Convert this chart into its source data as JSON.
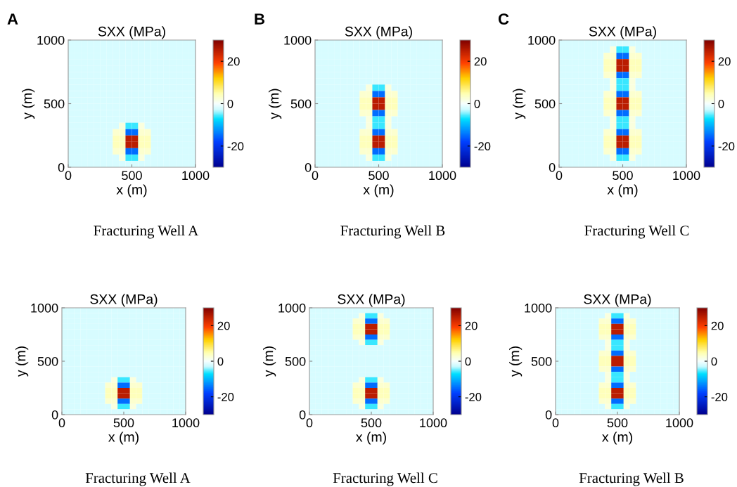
{
  "chart_data": [
    {
      "type": "heatmap",
      "title": "SXX (MPa)",
      "xlabel": "x (m)",
      "ylabel": "y (m)",
      "annotations": [
        "A",
        "Fracturing Well A"
      ],
      "xlim": [
        0,
        1000
      ],
      "ylim": [
        0,
        1000
      ],
      "xticks": [
        0,
        500,
        1000
      ],
      "yticks": [
        0,
        500,
        1000
      ],
      "clim": [
        -30,
        30
      ],
      "cticks": [
        -20,
        0,
        20
      ],
      "cells": [
        [
          -2,
          -2,
          -2,
          -2,
          -2,
          -2,
          -2,
          -2,
          -2,
          -2,
          -2,
          -2,
          -2,
          -2,
          -2,
          -2,
          -2,
          -2,
          -2,
          -2
        ],
        [
          -2,
          -2,
          -2,
          -2,
          -2,
          -2,
          -2,
          -2,
          -2,
          -2,
          -2,
          -2,
          -2,
          -2,
          -2,
          -2,
          -2,
          -2,
          -2,
          -2
        ],
        [
          -2,
          -2,
          -2,
          -2,
          -2,
          -2,
          -2,
          -2,
          -2,
          -2,
          -2,
          -2,
          -2,
          -2,
          -2,
          -2,
          -2,
          -2,
          -2,
          -2
        ],
        [
          -2,
          -2,
          -2,
          -2,
          -2,
          -2,
          -2,
          -2,
          -2,
          -2,
          -2,
          -2,
          -2,
          -2,
          -2,
          -2,
          -2,
          -2,
          -2,
          -2
        ],
        [
          -2,
          -2,
          -2,
          -2,
          -2,
          -2,
          -2,
          -2,
          -2,
          -2,
          -2,
          -2,
          -2,
          -2,
          -2,
          -2,
          -2,
          -2,
          -2,
          -2
        ],
        [
          -2,
          -2,
          -2,
          -2,
          -2,
          -2,
          -2,
          -2,
          -2,
          -2,
          -2,
          -2,
          -2,
          -2,
          -2,
          -2,
          -2,
          -2,
          -2,
          -2
        ],
        [
          -2,
          -2,
          -2,
          -2,
          -2,
          -2,
          -2,
          -2,
          -2,
          -2,
          -2,
          -2,
          -2,
          -2,
          -2,
          -2,
          -2,
          -2,
          -2,
          -2
        ],
        [
          -2,
          -2,
          -2,
          -2,
          -2,
          -2,
          -2,
          -2,
          -2,
          -2,
          -2,
          -2,
          -2,
          -2,
          -2,
          -2,
          -2,
          -2,
          -2,
          -2
        ],
        [
          -2,
          -2,
          -2,
          -2,
          -2,
          -2,
          -2,
          -2,
          -2,
          -2,
          -2,
          -2,
          -2,
          -2,
          -2,
          -2,
          -2,
          -2,
          -2,
          -2
        ],
        [
          -2,
          -2,
          -2,
          -2,
          -2,
          -2,
          -2,
          -2,
          -2,
          -2,
          -2,
          -2,
          -2,
          -2,
          -2,
          -2,
          -2,
          -2,
          -2,
          -2
        ],
        [
          -2,
          -2,
          -2,
          -2,
          -2,
          -2,
          -2,
          -2,
          -2,
          -2,
          -2,
          -2,
          -2,
          -2,
          -2,
          -2,
          -2,
          -2,
          -2,
          -2
        ],
        [
          -2,
          -2,
          -2,
          -2,
          -2,
          -2,
          -2,
          -2,
          -2,
          -2,
          -2,
          -2,
          -2,
          -2,
          -2,
          -2,
          -2,
          -2,
          -2,
          -2
        ],
        [
          -2,
          -2,
          -2,
          -2,
          -2,
          -2,
          -2,
          -2,
          -2,
          -2,
          -2,
          -2,
          -2,
          -2,
          -2,
          -2,
          -2,
          -2,
          -2,
          -2
        ],
        [
          -2,
          -2,
          -2,
          -2,
          -2,
          -2,
          -2,
          -2,
          2,
          -6,
          -6,
          2,
          -2,
          -2,
          -2,
          -2,
          -2,
          -2,
          -2,
          -2
        ],
        [
          -2,
          -2,
          -2,
          -2,
          -2,
          -2,
          -2,
          3,
          3,
          -15,
          -15,
          3,
          3,
          -2,
          -2,
          -2,
          -2,
          -2,
          -2,
          -2
        ],
        [
          -2,
          -2,
          -2,
          -2,
          -2,
          -2,
          -2,
          4,
          4,
          25,
          25,
          4,
          4,
          -2,
          -2,
          -2,
          -2,
          -2,
          -2,
          -2
        ],
        [
          -2,
          -2,
          -2,
          -2,
          -2,
          -2,
          -2,
          4,
          4,
          25,
          25,
          4,
          4,
          -2,
          -2,
          -2,
          -2,
          -2,
          -2,
          -2
        ],
        [
          -2,
          -2,
          -2,
          -2,
          -2,
          -2,
          -2,
          3,
          3,
          -15,
          -15,
          3,
          3,
          -2,
          -2,
          -2,
          -2,
          -2,
          -2,
          -2
        ],
        [
          -2,
          -2,
          -2,
          -2,
          -2,
          -2,
          -2,
          -2,
          2,
          -6,
          -6,
          2,
          -2,
          -2,
          -2,
          -2,
          -2,
          -2,
          -2,
          -2
        ],
        [
          -2,
          -2,
          -2,
          -2,
          -2,
          -2,
          -2,
          -2,
          -2,
          -2,
          -2,
          -2,
          -2,
          -2,
          -2,
          -2,
          -2,
          -2,
          -2,
          -2
        ]
      ]
    },
    {
      "type": "heatmap",
      "title": "SXX (MPa)",
      "xlabel": "x (m)",
      "ylabel": "y (m)",
      "annotations": [
        "B",
        "Fracturing Well B"
      ],
      "xlim": [
        0,
        1000
      ],
      "ylim": [
        0,
        1000
      ],
      "xticks": [
        0,
        500,
        1000
      ],
      "yticks": [
        0,
        500,
        1000
      ],
      "clim": [
        -30,
        30
      ],
      "cticks": [
        -20,
        0,
        20
      ],
      "cells": [
        [
          -2,
          -2,
          -2,
          -2,
          -2,
          -2,
          -2,
          -2,
          -2,
          -2,
          -2,
          -2,
          -2,
          -2,
          -2,
          -2,
          -2,
          -2,
          -2,
          -2
        ],
        [
          -2,
          -2,
          -2,
          -2,
          -2,
          -2,
          -2,
          -2,
          -2,
          -2,
          -2,
          -2,
          -2,
          -2,
          -2,
          -2,
          -2,
          -2,
          -2,
          -2
        ],
        [
          -2,
          -2,
          -2,
          -2,
          -2,
          -2,
          -2,
          -2,
          -2,
          -2,
          -2,
          -2,
          -2,
          -2,
          -2,
          -2,
          -2,
          -2,
          -2,
          -2
        ],
        [
          -2,
          -2,
          -2,
          -2,
          -2,
          -2,
          -2,
          -2,
          -2,
          -2,
          -2,
          -2,
          -2,
          -2,
          -2,
          -2,
          -2,
          -2,
          -2,
          -2
        ],
        [
          -2,
          -2,
          -2,
          -2,
          -2,
          -2,
          -2,
          -2,
          -2,
          -2,
          -2,
          -2,
          -2,
          -2,
          -2,
          -2,
          -2,
          -2,
          -2,
          -2
        ],
        [
          -2,
          -2,
          -2,
          -2,
          -2,
          -2,
          -2,
          -2,
          -2,
          -2,
          -2,
          -2,
          -2,
          -2,
          -2,
          -2,
          -2,
          -2,
          -2,
          -2
        ],
        [
          -2,
          -2,
          -2,
          -2,
          -2,
          -2,
          -2,
          -2,
          -2,
          -2,
          -2,
          -2,
          -2,
          -2,
          -2,
          -2,
          -2,
          -2,
          -2,
          -2
        ],
        [
          -2,
          -2,
          -2,
          -2,
          -2,
          -2,
          -2,
          -2,
          2,
          -6,
          -6,
          2,
          -2,
          -2,
          -2,
          -2,
          -2,
          -2,
          -2,
          -2
        ],
        [
          -2,
          -2,
          -2,
          -2,
          -2,
          -2,
          -2,
          3,
          3,
          -15,
          -15,
          3,
          3,
          -2,
          -2,
          -2,
          -2,
          -2,
          -2,
          -2
        ],
        [
          -2,
          -2,
          -2,
          -2,
          -2,
          -2,
          -2,
          4,
          4,
          25,
          25,
          4,
          4,
          -2,
          -2,
          -2,
          -2,
          -2,
          -2,
          -2
        ],
        [
          -2,
          -2,
          -2,
          -2,
          -2,
          -2,
          -2,
          4,
          4,
          25,
          25,
          4,
          4,
          -2,
          -2,
          -2,
          -2,
          -2,
          -2,
          -2
        ],
        [
          -2,
          -2,
          -2,
          -2,
          -2,
          -2,
          -2,
          3,
          3,
          -15,
          -15,
          3,
          3,
          -2,
          -2,
          -2,
          -2,
          -2,
          -2,
          -2
        ],
        [
          -2,
          -2,
          -2,
          -2,
          -2,
          -2,
          -2,
          -2,
          2,
          -6,
          -6,
          2,
          -2,
          -2,
          -2,
          -2,
          -2,
          -2,
          -2,
          -2
        ],
        [
          -2,
          -2,
          -2,
          -2,
          -2,
          -2,
          -2,
          -2,
          2,
          -6,
          -6,
          2,
          -2,
          -2,
          -2,
          -2,
          -2,
          -2,
          -2,
          -2
        ],
        [
          -2,
          -2,
          -2,
          -2,
          -2,
          -2,
          -2,
          3,
          3,
          -15,
          -15,
          3,
          3,
          -2,
          -2,
          -2,
          -2,
          -2,
          -2,
          -2
        ],
        [
          -2,
          -2,
          -2,
          -2,
          -2,
          -2,
          -2,
          4,
          4,
          25,
          25,
          4,
          4,
          -2,
          -2,
          -2,
          -2,
          -2,
          -2,
          -2
        ],
        [
          -2,
          -2,
          -2,
          -2,
          -2,
          -2,
          -2,
          4,
          4,
          25,
          25,
          4,
          4,
          -2,
          -2,
          -2,
          -2,
          -2,
          -2,
          -2
        ],
        [
          -2,
          -2,
          -2,
          -2,
          -2,
          -2,
          -2,
          3,
          3,
          -15,
          -15,
          3,
          3,
          -2,
          -2,
          -2,
          -2,
          -2,
          -2,
          -2
        ],
        [
          -2,
          -2,
          -2,
          -2,
          -2,
          -2,
          -2,
          -2,
          2,
          -6,
          -6,
          2,
          -2,
          -2,
          -2,
          -2,
          -2,
          -2,
          -2,
          -2
        ],
        [
          -2,
          -2,
          -2,
          -2,
          -2,
          -2,
          -2,
          -2,
          -2,
          -2,
          -2,
          -2,
          -2,
          -2,
          -2,
          -2,
          -2,
          -2,
          -2,
          -2
        ]
      ]
    },
    {
      "type": "heatmap",
      "title": "SXX (MPa)",
      "xlabel": "x (m)",
      "ylabel": "y (m)",
      "annotations": [
        "C",
        "Fracturing Well C"
      ],
      "xlim": [
        0,
        1000
      ],
      "ylim": [
        0,
        1000
      ],
      "xticks": [
        0,
        500,
        1000
      ],
      "yticks": [
        0,
        500,
        1000
      ],
      "clim": [
        -30,
        30
      ],
      "cticks": [
        -20,
        0,
        20
      ],
      "cells": [
        [
          -2,
          -2,
          -2,
          -2,
          -2,
          -2,
          -2,
          -2,
          -2,
          -2,
          -2,
          -2,
          -2,
          -2,
          -2,
          -2,
          -2,
          -2,
          -2,
          -2
        ],
        [
          -2,
          -2,
          -2,
          -2,
          -2,
          -2,
          -2,
          -2,
          2,
          -6,
          -6,
          2,
          -2,
          -2,
          -2,
          -2,
          -2,
          -2,
          -2,
          -2
        ],
        [
          -2,
          -2,
          -2,
          -2,
          -2,
          -2,
          -2,
          3,
          3,
          -15,
          -15,
          3,
          3,
          -2,
          -2,
          -2,
          -2,
          -2,
          -2,
          -2
        ],
        [
          -2,
          -2,
          -2,
          -2,
          -2,
          -2,
          -2,
          4,
          4,
          25,
          25,
          4,
          4,
          -2,
          -2,
          -2,
          -2,
          -2,
          -2,
          -2
        ],
        [
          -2,
          -2,
          -2,
          -2,
          -2,
          -2,
          -2,
          4,
          4,
          25,
          25,
          4,
          4,
          -2,
          -2,
          -2,
          -2,
          -2,
          -2,
          -2
        ],
        [
          -2,
          -2,
          -2,
          -2,
          -2,
          -2,
          -2,
          3,
          3,
          -15,
          -15,
          3,
          3,
          -2,
          -2,
          -2,
          -2,
          -2,
          -2,
          -2
        ],
        [
          -2,
          -2,
          -2,
          -2,
          -2,
          -2,
          -2,
          -2,
          2,
          -6,
          -6,
          2,
          -2,
          -2,
          -2,
          -2,
          -2,
          -2,
          -2,
          -2
        ],
        [
          -2,
          -2,
          -2,
          -2,
          -2,
          -2,
          -2,
          -2,
          2,
          -6,
          -6,
          2,
          -2,
          -2,
          -2,
          -2,
          -2,
          -2,
          -2,
          -2
        ],
        [
          -2,
          -2,
          -2,
          -2,
          -2,
          -2,
          -2,
          3,
          3,
          -15,
          -15,
          3,
          3,
          -2,
          -2,
          -2,
          -2,
          -2,
          -2,
          -2
        ],
        [
          -2,
          -2,
          -2,
          -2,
          -2,
          -2,
          -2,
          4,
          4,
          25,
          25,
          4,
          4,
          -2,
          -2,
          -2,
          -2,
          -2,
          -2,
          -2
        ],
        [
          -2,
          -2,
          -2,
          -2,
          -2,
          -2,
          -2,
          4,
          4,
          25,
          25,
          4,
          4,
          -2,
          -2,
          -2,
          -2,
          -2,
          -2,
          -2
        ],
        [
          -2,
          -2,
          -2,
          -2,
          -2,
          -2,
          -2,
          3,
          3,
          -15,
          -15,
          3,
          3,
          -2,
          -2,
          -2,
          -2,
          -2,
          -2,
          -2
        ],
        [
          -2,
          -2,
          -2,
          -2,
          -2,
          -2,
          -2,
          -2,
          2,
          -6,
          -6,
          2,
          -2,
          -2,
          -2,
          -2,
          -2,
          -2,
          -2,
          -2
        ],
        [
          -2,
          -2,
          -2,
          -2,
          -2,
          -2,
          -2,
          -2,
          2,
          -6,
          -6,
          2,
          -2,
          -2,
          -2,
          -2,
          -2,
          -2,
          -2,
          -2
        ],
        [
          -2,
          -2,
          -2,
          -2,
          -2,
          -2,
          -2,
          3,
          3,
          -15,
          -15,
          3,
          3,
          -2,
          -2,
          -2,
          -2,
          -2,
          -2,
          -2
        ],
        [
          -2,
          -2,
          -2,
          -2,
          -2,
          -2,
          -2,
          4,
          4,
          25,
          25,
          4,
          4,
          -2,
          -2,
          -2,
          -2,
          -2,
          -2,
          -2
        ],
        [
          -2,
          -2,
          -2,
          -2,
          -2,
          -2,
          -2,
          4,
          4,
          25,
          25,
          4,
          4,
          -2,
          -2,
          -2,
          -2,
          -2,
          -2,
          -2
        ],
        [
          -2,
          -2,
          -2,
          -2,
          -2,
          -2,
          -2,
          3,
          3,
          -15,
          -15,
          3,
          3,
          -2,
          -2,
          -2,
          -2,
          -2,
          -2,
          -2
        ],
        [
          -2,
          -2,
          -2,
          -2,
          -2,
          -2,
          -2,
          -2,
          2,
          -6,
          -6,
          2,
          -2,
          -2,
          -2,
          -2,
          -2,
          -2,
          -2,
          -2
        ],
        [
          -2,
          -2,
          -2,
          -2,
          -2,
          -2,
          -2,
          -2,
          -2,
          -2,
          -2,
          -2,
          -2,
          -2,
          -2,
          -2,
          -2,
          -2,
          -2,
          -2
        ]
      ]
    },
    {
      "type": "heatmap",
      "title": "SXX (MPa)",
      "xlabel": "x (m)",
      "ylabel": "y (m)",
      "annotations": [
        "Fracturing Well A"
      ],
      "xlim": [
        0,
        1000
      ],
      "ylim": [
        0,
        1000
      ],
      "xticks": [
        0,
        500,
        1000
      ],
      "yticks": [
        0,
        500,
        1000
      ],
      "clim": [
        -30,
        30
      ],
      "cticks": [
        -20,
        0,
        20
      ],
      "cells": [
        [
          -2,
          -2,
          -2,
          -2,
          -2,
          -2,
          -2,
          -2,
          -2,
          -2,
          -2,
          -2,
          -2,
          -2,
          -2,
          -2,
          -2,
          -2,
          -2,
          -2
        ],
        [
          -2,
          -2,
          -2,
          -2,
          -2,
          -2,
          -2,
          -2,
          -2,
          -2,
          -2,
          -2,
          -2,
          -2,
          -2,
          -2,
          -2,
          -2,
          -2,
          -2
        ],
        [
          -2,
          -2,
          -2,
          -2,
          -2,
          -2,
          -2,
          -2,
          -2,
          -2,
          -2,
          -2,
          -2,
          -2,
          -2,
          -2,
          -2,
          -2,
          -2,
          -2
        ],
        [
          -2,
          -2,
          -2,
          -2,
          -2,
          -2,
          -2,
          -2,
          -2,
          -2,
          -2,
          -2,
          -2,
          -2,
          -2,
          -2,
          -2,
          -2,
          -2,
          -2
        ],
        [
          -2,
          -2,
          -2,
          -2,
          -2,
          -2,
          -2,
          -2,
          -2,
          -2,
          -2,
          -2,
          -2,
          -2,
          -2,
          -2,
          -2,
          -2,
          -2,
          -2
        ],
        [
          -2,
          -2,
          -2,
          -2,
          -2,
          -2,
          -2,
          -2,
          -2,
          -2,
          -2,
          -2,
          -2,
          -2,
          -2,
          -2,
          -2,
          -2,
          -2,
          -2
        ],
        [
          -2,
          -2,
          -2,
          -2,
          -2,
          -2,
          -2,
          -2,
          -2,
          -2,
          -2,
          -2,
          -2,
          -2,
          -2,
          -2,
          -2,
          -2,
          -2,
          -2
        ],
        [
          -2,
          -2,
          -2,
          -2,
          -2,
          -2,
          -2,
          -2,
          -2,
          -2,
          -2,
          -2,
          -2,
          -2,
          -2,
          -2,
          -2,
          -2,
          -2,
          -2
        ],
        [
          -2,
          -2,
          -2,
          -2,
          -2,
          -2,
          -2,
          -2,
          -2,
          -2,
          -2,
          -2,
          -2,
          -2,
          -2,
          -2,
          -2,
          -2,
          -2,
          -2
        ],
        [
          -2,
          -2,
          -2,
          -2,
          -2,
          -2,
          -2,
          -2,
          -2,
          -2,
          -2,
          -2,
          -2,
          -2,
          -2,
          -2,
          -2,
          -2,
          -2,
          -2
        ],
        [
          -2,
          -2,
          -2,
          -2,
          -2,
          -2,
          -2,
          -2,
          -2,
          -2,
          -2,
          -2,
          -2,
          -2,
          -2,
          -2,
          -2,
          -2,
          -2,
          -2
        ],
        [
          -2,
          -2,
          -2,
          -2,
          -2,
          -2,
          -2,
          -2,
          -2,
          -2,
          -2,
          -2,
          -2,
          -2,
          -2,
          -2,
          -2,
          -2,
          -2,
          -2
        ],
        [
          -2,
          -2,
          -2,
          -2,
          -2,
          -2,
          -2,
          -2,
          -2,
          -2,
          -2,
          -2,
          -2,
          -2,
          -2,
          -2,
          -2,
          -2,
          -2,
          -2
        ],
        [
          -2,
          -2,
          -2,
          -2,
          -2,
          -2,
          -2,
          -2,
          2,
          -6,
          -6,
          2,
          -2,
          -2,
          -2,
          -2,
          -2,
          -2,
          -2,
          -2
        ],
        [
          -2,
          -2,
          -2,
          -2,
          -2,
          -2,
          -2,
          3,
          3,
          -15,
          -15,
          3,
          3,
          -2,
          -2,
          -2,
          -2,
          -2,
          -2,
          -2
        ],
        [
          -2,
          -2,
          -2,
          -2,
          -2,
          -2,
          -2,
          4,
          4,
          25,
          25,
          4,
          4,
          -2,
          -2,
          -2,
          -2,
          -2,
          -2,
          -2
        ],
        [
          -2,
          -2,
          -2,
          -2,
          -2,
          -2,
          -2,
          4,
          4,
          25,
          25,
          4,
          4,
          -2,
          -2,
          -2,
          -2,
          -2,
          -2,
          -2
        ],
        [
          -2,
          -2,
          -2,
          -2,
          -2,
          -2,
          -2,
          3,
          3,
          -15,
          -15,
          3,
          3,
          -2,
          -2,
          -2,
          -2,
          -2,
          -2,
          -2
        ],
        [
          -2,
          -2,
          -2,
          -2,
          -2,
          -2,
          -2,
          -2,
          2,
          -6,
          -6,
          2,
          -2,
          -2,
          -2,
          -2,
          -2,
          -2,
          -2,
          -2
        ],
        [
          -2,
          -2,
          -2,
          -2,
          -2,
          -2,
          -2,
          -2,
          -2,
          -2,
          -2,
          -2,
          -2,
          -2,
          -2,
          -2,
          -2,
          -2,
          -2,
          -2
        ]
      ]
    },
    {
      "type": "heatmap",
      "title": "SXX (MPa)",
      "xlabel": "x (m)",
      "ylabel": "y (m)",
      "annotations": [
        "Fracturing Well C"
      ],
      "xlim": [
        0,
        1000
      ],
      "ylim": [
        0,
        1000
      ],
      "xticks": [
        0,
        500,
        1000
      ],
      "yticks": [
        0,
        500,
        1000
      ],
      "clim": [
        -30,
        30
      ],
      "cticks": [
        -20,
        0,
        20
      ],
      "cells": [
        [
          -2,
          -2,
          -2,
          -2,
          -2,
          -2,
          -2,
          -2,
          -2,
          -2,
          -2,
          -2,
          -2,
          -2,
          -2,
          -2,
          -2,
          -2,
          -2,
          -2
        ],
        [
          -2,
          -2,
          -2,
          -2,
          -2,
          -2,
          -2,
          -2,
          2,
          -6,
          -6,
          2,
          -2,
          -2,
          -2,
          -2,
          -2,
          -2,
          -2,
          -2
        ],
        [
          -2,
          -2,
          -2,
          -2,
          -2,
          -2,
          -2,
          3,
          3,
          -15,
          -15,
          3,
          3,
          -2,
          -2,
          -2,
          -2,
          -2,
          -2,
          -2
        ],
        [
          -2,
          -2,
          -2,
          -2,
          -2,
          -2,
          -2,
          4,
          4,
          25,
          25,
          4,
          4,
          -2,
          -2,
          -2,
          -2,
          -2,
          -2,
          -2
        ],
        [
          -2,
          -2,
          -2,
          -2,
          -2,
          -2,
          -2,
          4,
          4,
          25,
          25,
          4,
          4,
          -2,
          -2,
          -2,
          -2,
          -2,
          -2,
          -2
        ],
        [
          -2,
          -2,
          -2,
          -2,
          -2,
          -2,
          -2,
          3,
          3,
          -15,
          -15,
          3,
          3,
          -2,
          -2,
          -2,
          -2,
          -2,
          -2,
          -2
        ],
        [
          -2,
          -2,
          -2,
          -2,
          -2,
          -2,
          -2,
          -2,
          2,
          -6,
          -6,
          2,
          -2,
          -2,
          -2,
          -2,
          -2,
          -2,
          -2,
          -2
        ],
        [
          -2,
          -2,
          -2,
          -2,
          -2,
          -2,
          -2,
          -2,
          -2,
          -2,
          -2,
          -2,
          -2,
          -2,
          -2,
          -2,
          -2,
          -2,
          -2,
          -2
        ],
        [
          -2,
          -2,
          -2,
          -2,
          -2,
          -2,
          -2,
          -2,
          -2,
          -2,
          -2,
          -2,
          -2,
          -2,
          -2,
          -2,
          -2,
          -2,
          -2,
          -2
        ],
        [
          -2,
          -2,
          -2,
          -2,
          -2,
          -2,
          -2,
          -2,
          -2,
          -2,
          -2,
          -2,
          -2,
          -2,
          -2,
          -2,
          -2,
          -2,
          -2,
          -2
        ],
        [
          -2,
          -2,
          -2,
          -2,
          -2,
          -2,
          -2,
          -2,
          -2,
          -2,
          -2,
          -2,
          -2,
          -2,
          -2,
          -2,
          -2,
          -2,
          -2,
          -2
        ],
        [
          -2,
          -2,
          -2,
          -2,
          -2,
          -2,
          -2,
          -2,
          -2,
          -2,
          -2,
          -2,
          -2,
          -2,
          -2,
          -2,
          -2,
          -2,
          -2,
          -2
        ],
        [
          -2,
          -2,
          -2,
          -2,
          -2,
          -2,
          -2,
          -2,
          -2,
          -2,
          -2,
          -2,
          -2,
          -2,
          -2,
          -2,
          -2,
          -2,
          -2,
          -2
        ],
        [
          -2,
          -2,
          -2,
          -2,
          -2,
          -2,
          -2,
          -2,
          2,
          -6,
          -6,
          2,
          -2,
          -2,
          -2,
          -2,
          -2,
          -2,
          -2,
          -2
        ],
        [
          -2,
          -2,
          -2,
          -2,
          -2,
          -2,
          -2,
          3,
          3,
          -15,
          -15,
          3,
          3,
          -2,
          -2,
          -2,
          -2,
          -2,
          -2,
          -2
        ],
        [
          -2,
          -2,
          -2,
          -2,
          -2,
          -2,
          -2,
          4,
          4,
          25,
          25,
          4,
          4,
          -2,
          -2,
          -2,
          -2,
          -2,
          -2,
          -2
        ],
        [
          -2,
          -2,
          -2,
          -2,
          -2,
          -2,
          -2,
          4,
          4,
          25,
          25,
          4,
          4,
          -2,
          -2,
          -2,
          -2,
          -2,
          -2,
          -2
        ],
        [
          -2,
          -2,
          -2,
          -2,
          -2,
          -2,
          -2,
          3,
          3,
          -15,
          -15,
          3,
          3,
          -2,
          -2,
          -2,
          -2,
          -2,
          -2,
          -2
        ],
        [
          -2,
          -2,
          -2,
          -2,
          -2,
          -2,
          -2,
          -2,
          2,
          -6,
          -6,
          2,
          -2,
          -2,
          -2,
          -2,
          -2,
          -2,
          -2,
          -2
        ],
        [
          -2,
          -2,
          -2,
          -2,
          -2,
          -2,
          -2,
          -2,
          -2,
          -2,
          -2,
          -2,
          -2,
          -2,
          -2,
          -2,
          -2,
          -2,
          -2,
          -2
        ]
      ]
    },
    {
      "type": "heatmap",
      "title": "SXX (MPa)",
      "xlabel": "x (m)",
      "ylabel": "y (m)",
      "annotations": [
        "Fracturing Well B"
      ],
      "xlim": [
        0,
        1000
      ],
      "ylim": [
        0,
        1000
      ],
      "xticks": [
        0,
        500,
        1000
      ],
      "yticks": [
        0,
        500,
        1000
      ],
      "clim": [
        -30,
        30
      ],
      "cticks": [
        -20,
        0,
        20
      ],
      "cells": [
        [
          -2,
          -2,
          -2,
          -2,
          -2,
          -2,
          -2,
          -2,
          -2,
          -2,
          -2,
          -2,
          -2,
          -2,
          -2,
          -2,
          -2,
          -2,
          -2,
          -2
        ],
        [
          -2,
          -2,
          -2,
          -2,
          -2,
          -2,
          -2,
          -2,
          2,
          -6,
          -6,
          2,
          -2,
          -2,
          -2,
          -2,
          -2,
          -2,
          -2,
          -2
        ],
        [
          -2,
          -2,
          -2,
          -2,
          -2,
          -2,
          -2,
          3,
          3,
          -15,
          -15,
          3,
          3,
          -2,
          -2,
          -2,
          -2,
          -2,
          -2,
          -2
        ],
        [
          -2,
          -2,
          -2,
          -2,
          -2,
          -2,
          -2,
          4,
          4,
          25,
          25,
          4,
          4,
          -2,
          -2,
          -2,
          -2,
          -2,
          -2,
          -2
        ],
        [
          -2,
          -2,
          -2,
          -2,
          -2,
          -2,
          -2,
          4,
          4,
          25,
          25,
          4,
          4,
          -2,
          -2,
          -2,
          -2,
          -2,
          -2,
          -2
        ],
        [
          -2,
          -2,
          -2,
          -2,
          -2,
          -2,
          -2,
          3,
          3,
          -15,
          -15,
          3,
          3,
          -2,
          -2,
          -2,
          -2,
          -2,
          -2,
          -2
        ],
        [
          -2,
          -2,
          -2,
          -2,
          -2,
          -2,
          -2,
          -2,
          2,
          -6,
          -6,
          2,
          -2,
          -2,
          -2,
          -2,
          -2,
          -2,
          -2,
          -2
        ],
        [
          -2,
          -2,
          -2,
          -2,
          -2,
          -2,
          -2,
          -2,
          2,
          -6,
          -6,
          2,
          -2,
          -2,
          -2,
          -2,
          -2,
          -2,
          -2,
          -2
        ],
        [
          -2,
          -2,
          -2,
          -2,
          -2,
          -2,
          -2,
          3,
          3,
          -15,
          -15,
          3,
          3,
          -2,
          -2,
          -2,
          -2,
          -2,
          -2,
          -2
        ],
        [
          -2,
          -2,
          -2,
          -2,
          -2,
          -2,
          -2,
          4,
          4,
          25,
          25,
          4,
          4,
          -2,
          -2,
          -2,
          -2,
          -2,
          -2,
          -2
        ],
        [
          -2,
          -2,
          -2,
          -2,
          -2,
          -2,
          -2,
          4,
          4,
          25,
          25,
          4,
          4,
          -2,
          -2,
          -2,
          -2,
          -2,
          -2,
          -2
        ],
        [
          -2,
          -2,
          -2,
          -2,
          -2,
          -2,
          -2,
          3,
          3,
          -15,
          -15,
          3,
          3,
          -2,
          -2,
          -2,
          -2,
          -2,
          -2,
          -2
        ],
        [
          -2,
          -2,
          -2,
          -2,
          -2,
          -2,
          -2,
          -2,
          2,
          -6,
          -6,
          2,
          -2,
          -2,
          -2,
          -2,
          -2,
          -2,
          -2,
          -2
        ],
        [
          -2,
          -2,
          -2,
          -2,
          -2,
          -2,
          -2,
          -2,
          2,
          -6,
          -6,
          2,
          -2,
          -2,
          -2,
          -2,
          -2,
          -2,
          -2,
          -2
        ],
        [
          -2,
          -2,
          -2,
          -2,
          -2,
          -2,
          -2,
          3,
          3,
          -15,
          -15,
          3,
          3,
          -2,
          -2,
          -2,
          -2,
          -2,
          -2,
          -2
        ],
        [
          -2,
          -2,
          -2,
          -2,
          -2,
          -2,
          -2,
          4,
          4,
          25,
          25,
          4,
          4,
          -2,
          -2,
          -2,
          -2,
          -2,
          -2,
          -2
        ],
        [
          -2,
          -2,
          -2,
          -2,
          -2,
          -2,
          -2,
          4,
          4,
          25,
          25,
          4,
          4,
          -2,
          -2,
          -2,
          -2,
          -2,
          -2,
          -2
        ],
        [
          -2,
          -2,
          -2,
          -2,
          -2,
          -2,
          -2,
          3,
          3,
          -15,
          -15,
          3,
          3,
          -2,
          -2,
          -2,
          -2,
          -2,
          -2,
          -2
        ],
        [
          -2,
          -2,
          -2,
          -2,
          -2,
          -2,
          -2,
          -2,
          2,
          -6,
          -6,
          2,
          -2,
          -2,
          -2,
          -2,
          -2,
          -2,
          -2,
          -2
        ],
        [
          -2,
          -2,
          -2,
          -2,
          -2,
          -2,
          -2,
          -2,
          -2,
          -2,
          -2,
          -2,
          -2,
          -2,
          -2,
          -2,
          -2,
          -2,
          -2,
          -2
        ]
      ]
    }
  ]
}
